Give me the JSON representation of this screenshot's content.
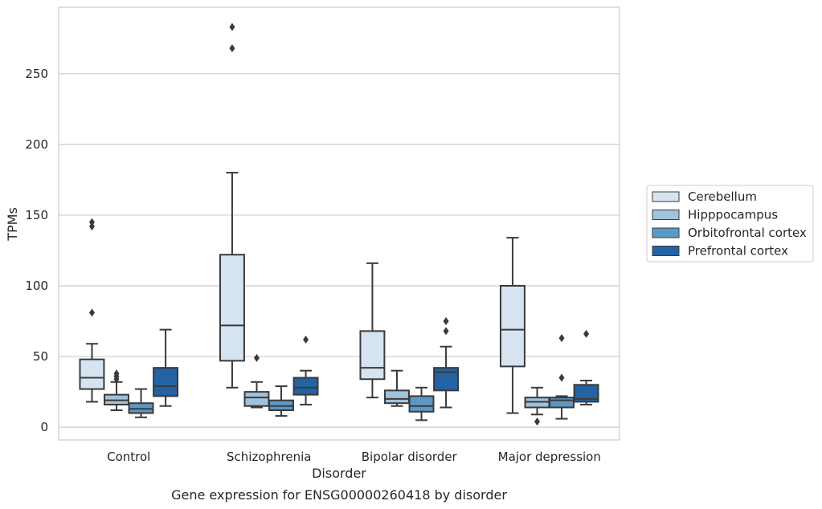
{
  "chart_data": {
    "type": "box",
    "title": "",
    "caption": "Gene expression for ENSG00000260418 by disorder",
    "xlabel": "Disorder",
    "ylabel": "TPMs",
    "ylim": [
      -9,
      297
    ],
    "yticks": [
      0,
      50,
      100,
      150,
      200,
      250
    ],
    "grid": "horizontal",
    "legend_position": "outside-right",
    "categories": [
      "Control",
      "Schizophrenia",
      "Bipolar disorder",
      "Major depression"
    ],
    "series": [
      {
        "name": "Cerebellum",
        "color": "#d6e4f2",
        "boxes": [
          {
            "whislo": 18,
            "q1": 27,
            "med": 35,
            "q3": 48,
            "whishi": 59,
            "fliers": [
              81,
              142,
              145
            ]
          },
          {
            "whislo": 28,
            "q1": 47,
            "med": 72,
            "q3": 122,
            "whishi": 180,
            "fliers": [
              268,
              283
            ]
          },
          {
            "whislo": 21,
            "q1": 34,
            "med": 42,
            "q3": 68,
            "whishi": 116,
            "fliers": []
          },
          {
            "whislo": 10,
            "q1": 43,
            "med": 69,
            "q3": 100,
            "whishi": 134,
            "fliers": []
          }
        ]
      },
      {
        "name": "Hipppocampus",
        "color": "#9fc3dc",
        "boxes": [
          {
            "whislo": 12,
            "q1": 16,
            "med": 19,
            "q3": 23,
            "whishi": 32,
            "fliers": [
              34,
              36,
              38
            ]
          },
          {
            "whislo": 14,
            "q1": 15,
            "med": 21,
            "q3": 25,
            "whishi": 32,
            "fliers": [
              49
            ]
          },
          {
            "whislo": 15,
            "q1": 17,
            "med": 20,
            "q3": 26,
            "whishi": 40,
            "fliers": []
          },
          {
            "whislo": 9,
            "q1": 14,
            "med": 18,
            "q3": 21,
            "whishi": 28,
            "fliers": [
              4
            ]
          }
        ]
      },
      {
        "name": "Orbitofrontal cortex",
        "color": "#5c98c6",
        "boxes": [
          {
            "whislo": 7,
            "q1": 10,
            "med": 13,
            "q3": 17,
            "whishi": 27,
            "fliers": []
          },
          {
            "whislo": 8,
            "q1": 12,
            "med": 15,
            "q3": 19,
            "whishi": 29,
            "fliers": []
          },
          {
            "whislo": 5,
            "q1": 11,
            "med": 15,
            "q3": 22,
            "whishi": 28,
            "fliers": []
          },
          {
            "whislo": 6,
            "q1": 14,
            "med": 19,
            "q3": 21,
            "whishi": 22,
            "fliers": [
              35,
              63
            ]
          }
        ]
      },
      {
        "name": "Prefrontal cortex",
        "color": "#2362a3",
        "boxes": [
          {
            "whislo": 15,
            "q1": 22,
            "med": 29,
            "q3": 42,
            "whishi": 69,
            "fliers": []
          },
          {
            "whislo": 16,
            "q1": 23,
            "med": 28,
            "q3": 35,
            "whishi": 40,
            "fliers": [
              62
            ]
          },
          {
            "whislo": 14,
            "q1": 26,
            "med": 39,
            "q3": 42,
            "whishi": 57,
            "fliers": [
              68,
              75
            ]
          },
          {
            "whislo": 16,
            "q1": 18,
            "med": 20,
            "q3": 30,
            "whishi": 33,
            "fliers": [
              66
            ]
          }
        ]
      }
    ]
  }
}
